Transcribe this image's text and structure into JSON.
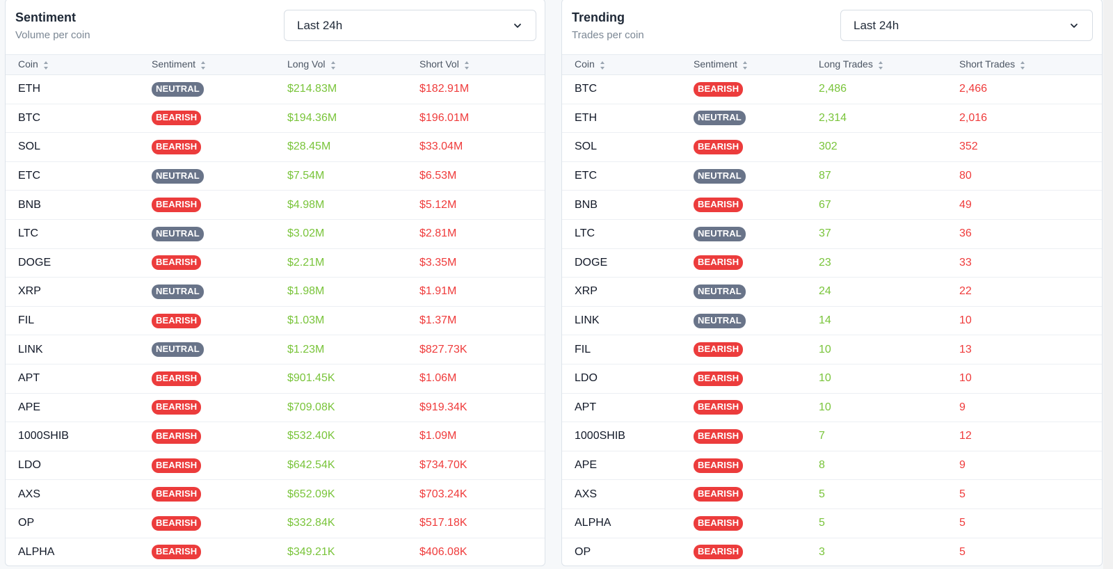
{
  "colors": {
    "long": "#79c43a",
    "short": "#ef3b3b",
    "bearish": "#ec3c3c",
    "neutral": "#697489"
  },
  "sentiment_panel": {
    "title": "Sentiment",
    "subtitle": "Volume per coin",
    "timeframe": "Last 24h",
    "columns": [
      "Coin",
      "Sentiment",
      "Long Vol",
      "Short Vol"
    ],
    "rows": [
      [
        "ETH",
        "NEUTRAL",
        "$214.83M",
        "$182.91M"
      ],
      [
        "BTC",
        "BEARISH",
        "$194.36M",
        "$196.01M"
      ],
      [
        "SOL",
        "BEARISH",
        "$28.45M",
        "$33.04M"
      ],
      [
        "ETC",
        "NEUTRAL",
        "$7.54M",
        "$6.53M"
      ],
      [
        "BNB",
        "BEARISH",
        "$4.98M",
        "$5.12M"
      ],
      [
        "LTC",
        "NEUTRAL",
        "$3.02M",
        "$2.81M"
      ],
      [
        "DOGE",
        "BEARISH",
        "$2.21M",
        "$3.35M"
      ],
      [
        "XRP",
        "NEUTRAL",
        "$1.98M",
        "$1.91M"
      ],
      [
        "FIL",
        "BEARISH",
        "$1.03M",
        "$1.37M"
      ],
      [
        "LINK",
        "NEUTRAL",
        "$1.23M",
        "$827.73K"
      ],
      [
        "APT",
        "BEARISH",
        "$901.45K",
        "$1.06M"
      ],
      [
        "APE",
        "BEARISH",
        "$709.08K",
        "$919.34K"
      ],
      [
        "1000SHIB",
        "BEARISH",
        "$532.40K",
        "$1.09M"
      ],
      [
        "LDO",
        "BEARISH",
        "$642.54K",
        "$734.70K"
      ],
      [
        "AXS",
        "BEARISH",
        "$652.09K",
        "$703.24K"
      ],
      [
        "OP",
        "BEARISH",
        "$332.84K",
        "$517.18K"
      ],
      [
        "ALPHA",
        "BEARISH",
        "$349.21K",
        "$406.08K"
      ]
    ]
  },
  "trending_panel": {
    "title": "Trending",
    "subtitle": "Trades per coin",
    "timeframe": "Last 24h",
    "columns": [
      "Coin",
      "Sentiment",
      "Long Trades",
      "Short Trades"
    ],
    "rows": [
      [
        "BTC",
        "BEARISH",
        "2,486",
        "2,466"
      ],
      [
        "ETH",
        "NEUTRAL",
        "2,314",
        "2,016"
      ],
      [
        "SOL",
        "BEARISH",
        "302",
        "352"
      ],
      [
        "ETC",
        "NEUTRAL",
        "87",
        "80"
      ],
      [
        "BNB",
        "BEARISH",
        "67",
        "49"
      ],
      [
        "LTC",
        "NEUTRAL",
        "37",
        "36"
      ],
      [
        "DOGE",
        "BEARISH",
        "23",
        "33"
      ],
      [
        "XRP",
        "NEUTRAL",
        "24",
        "22"
      ],
      [
        "LINK",
        "NEUTRAL",
        "14",
        "10"
      ],
      [
        "FIL",
        "BEARISH",
        "10",
        "13"
      ],
      [
        "LDO",
        "BEARISH",
        "10",
        "10"
      ],
      [
        "APT",
        "BEARISH",
        "10",
        "9"
      ],
      [
        "1000SHIB",
        "BEARISH",
        "7",
        "12"
      ],
      [
        "APE",
        "BEARISH",
        "8",
        "9"
      ],
      [
        "AXS",
        "BEARISH",
        "5",
        "5"
      ],
      [
        "ALPHA",
        "BEARISH",
        "5",
        "5"
      ],
      [
        "OP",
        "BEARISH",
        "3",
        "5"
      ]
    ]
  }
}
